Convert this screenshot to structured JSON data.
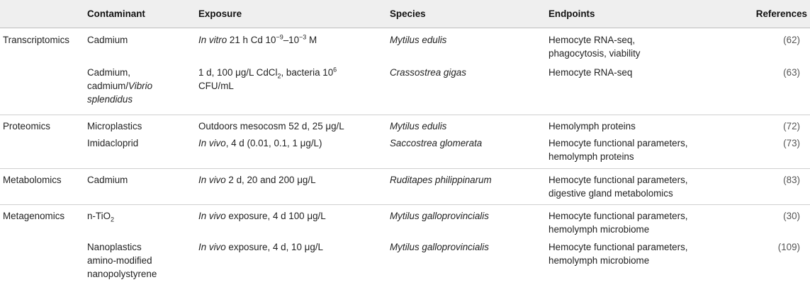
{
  "headers": [
    "",
    "Contaminant",
    "Exposure",
    "Species",
    "Endpoints",
    "References"
  ],
  "rows": [
    {
      "category": "Transcriptomics",
      "contaminant": "Cadmium",
      "exposure_prefix": "In vitro",
      "exposure_main": " 21 h Cd 10",
      "exposure_sup1": "−9",
      "exposure_mid": "–10",
      "exposure_sup2": "−3",
      "exposure_suffix": " M",
      "species": "Mytilus edulis",
      "endpoints": [
        "Hemocyte RNA-seq,",
        "phagocytosis, viability"
      ],
      "reference": "62"
    },
    {
      "category": "",
      "contaminant_a": "Cadmium,",
      "contaminant_b": "cadmium/",
      "contaminant_c": "Vibrio",
      "contaminant_d": "splendidus",
      "exposure_a": "1 d, 100 μg/L CdCl",
      "exposure_sub": "2",
      "exposure_b": ", bacteria 10",
      "exposure_sup": "6",
      "exposure_c": "CFU/mL",
      "species": "Crassostrea gigas",
      "endpoints": [
        "Hemocyte RNA-seq"
      ],
      "reference": "63"
    },
    {
      "category": "Proteomics",
      "contaminant": "Microplastics",
      "exposure": "Outdoors mesocosm 52 d, 25 μg/L",
      "species": "Mytilus edulis",
      "endpoints": [
        "Hemolymph proteins"
      ],
      "reference": "72"
    },
    {
      "category": "",
      "contaminant": "Imidacloprid",
      "exposure_prefix": "In vivo",
      "exposure_rest": ", 4 d (0.01, 0.1, 1 μg/L)",
      "species": "Saccostrea glomerata",
      "endpoints": [
        "Hemocyte functional parameters,",
        "hemolymph proteins"
      ],
      "reference": "73"
    },
    {
      "category": "Metabolomics",
      "contaminant": "Cadmium",
      "exposure_prefix": "In vivo",
      "exposure_rest": " 2 d, 20 and 200 μg/L",
      "species": "Ruditapes philippinarum",
      "endpoints": [
        "Hemocyte functional parameters,",
        "digestive gland metabolomics"
      ],
      "reference": "83"
    },
    {
      "category": "Metagenomics",
      "contaminant_a": "n-TiO",
      "contaminant_sub": "2",
      "exposure_prefix": "In vivo",
      "exposure_rest": " exposure, 4 d 100 μg/L",
      "species": "Mytilus galloprovincialis",
      "endpoints": [
        "Hemocyte functional parameters,",
        "hemolymph microbiome"
      ],
      "reference": "30"
    },
    {
      "category": "",
      "contaminant_lines": [
        "Nanoplastics",
        "amino-modified",
        "nanopolystyrene"
      ],
      "exposure_prefix": "In vivo",
      "exposure_rest": " exposure, 4 d, 10 μg/L",
      "species": "Mytilus galloprovincialis",
      "endpoints": [
        "Hemocyte functional parameters,",
        "hemolymph microbiome"
      ],
      "reference": "109"
    }
  ],
  "ref_open": "(",
  "ref_close": ")"
}
